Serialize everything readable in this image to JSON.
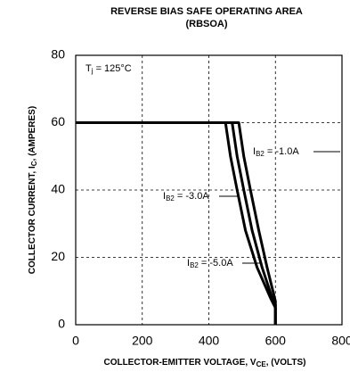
{
  "chart_data": {
    "type": "line",
    "title": "REVERSE BIAS SAFE OPERATING AREA",
    "subtitle": "(RBSOA)",
    "x_label": [
      "COLLECTOR-EMITTER VOLTAGE, V",
      "CE",
      ", (VOLTS)"
    ],
    "y_label": [
      "COLLECTOR CURRENT, I",
      "C",
      ", (AMPERES)"
    ],
    "annotation": [
      "T",
      "j",
      " = 125°C"
    ],
    "xlim": [
      0,
      800
    ],
    "xticks": [
      0,
      200,
      400,
      600,
      800
    ],
    "ylim": [
      0,
      80
    ],
    "yticks": [
      0,
      20,
      40,
      60,
      80
    ],
    "grid": true,
    "series": [
      {
        "name": [
          "I",
          "B2",
          " = -1.0A"
        ],
        "color": "#000000",
        "x": [
          0,
          490,
          505,
          525,
          550,
          575,
          595,
          600,
          600
        ],
        "values": [
          60,
          60,
          50,
          40,
          28,
          17,
          9,
          7,
          0
        ]
      },
      {
        "name": [
          "I",
          "B2",
          " = -3.0A"
        ],
        "color": "#000000",
        "x": [
          0,
          470,
          485,
          505,
          530,
          560,
          590,
          600,
          600
        ],
        "values": [
          60,
          60,
          50,
          40,
          28,
          17,
          8,
          6,
          0
        ]
      },
      {
        "name": [
          "I",
          "B2",
          " = -5.0A"
        ],
        "color": "#000000",
        "x": [
          0,
          450,
          465,
          485,
          510,
          545,
          585,
          600,
          600
        ],
        "values": [
          60,
          60,
          50,
          40,
          28,
          17,
          8,
          5,
          0
        ]
      }
    ]
  }
}
